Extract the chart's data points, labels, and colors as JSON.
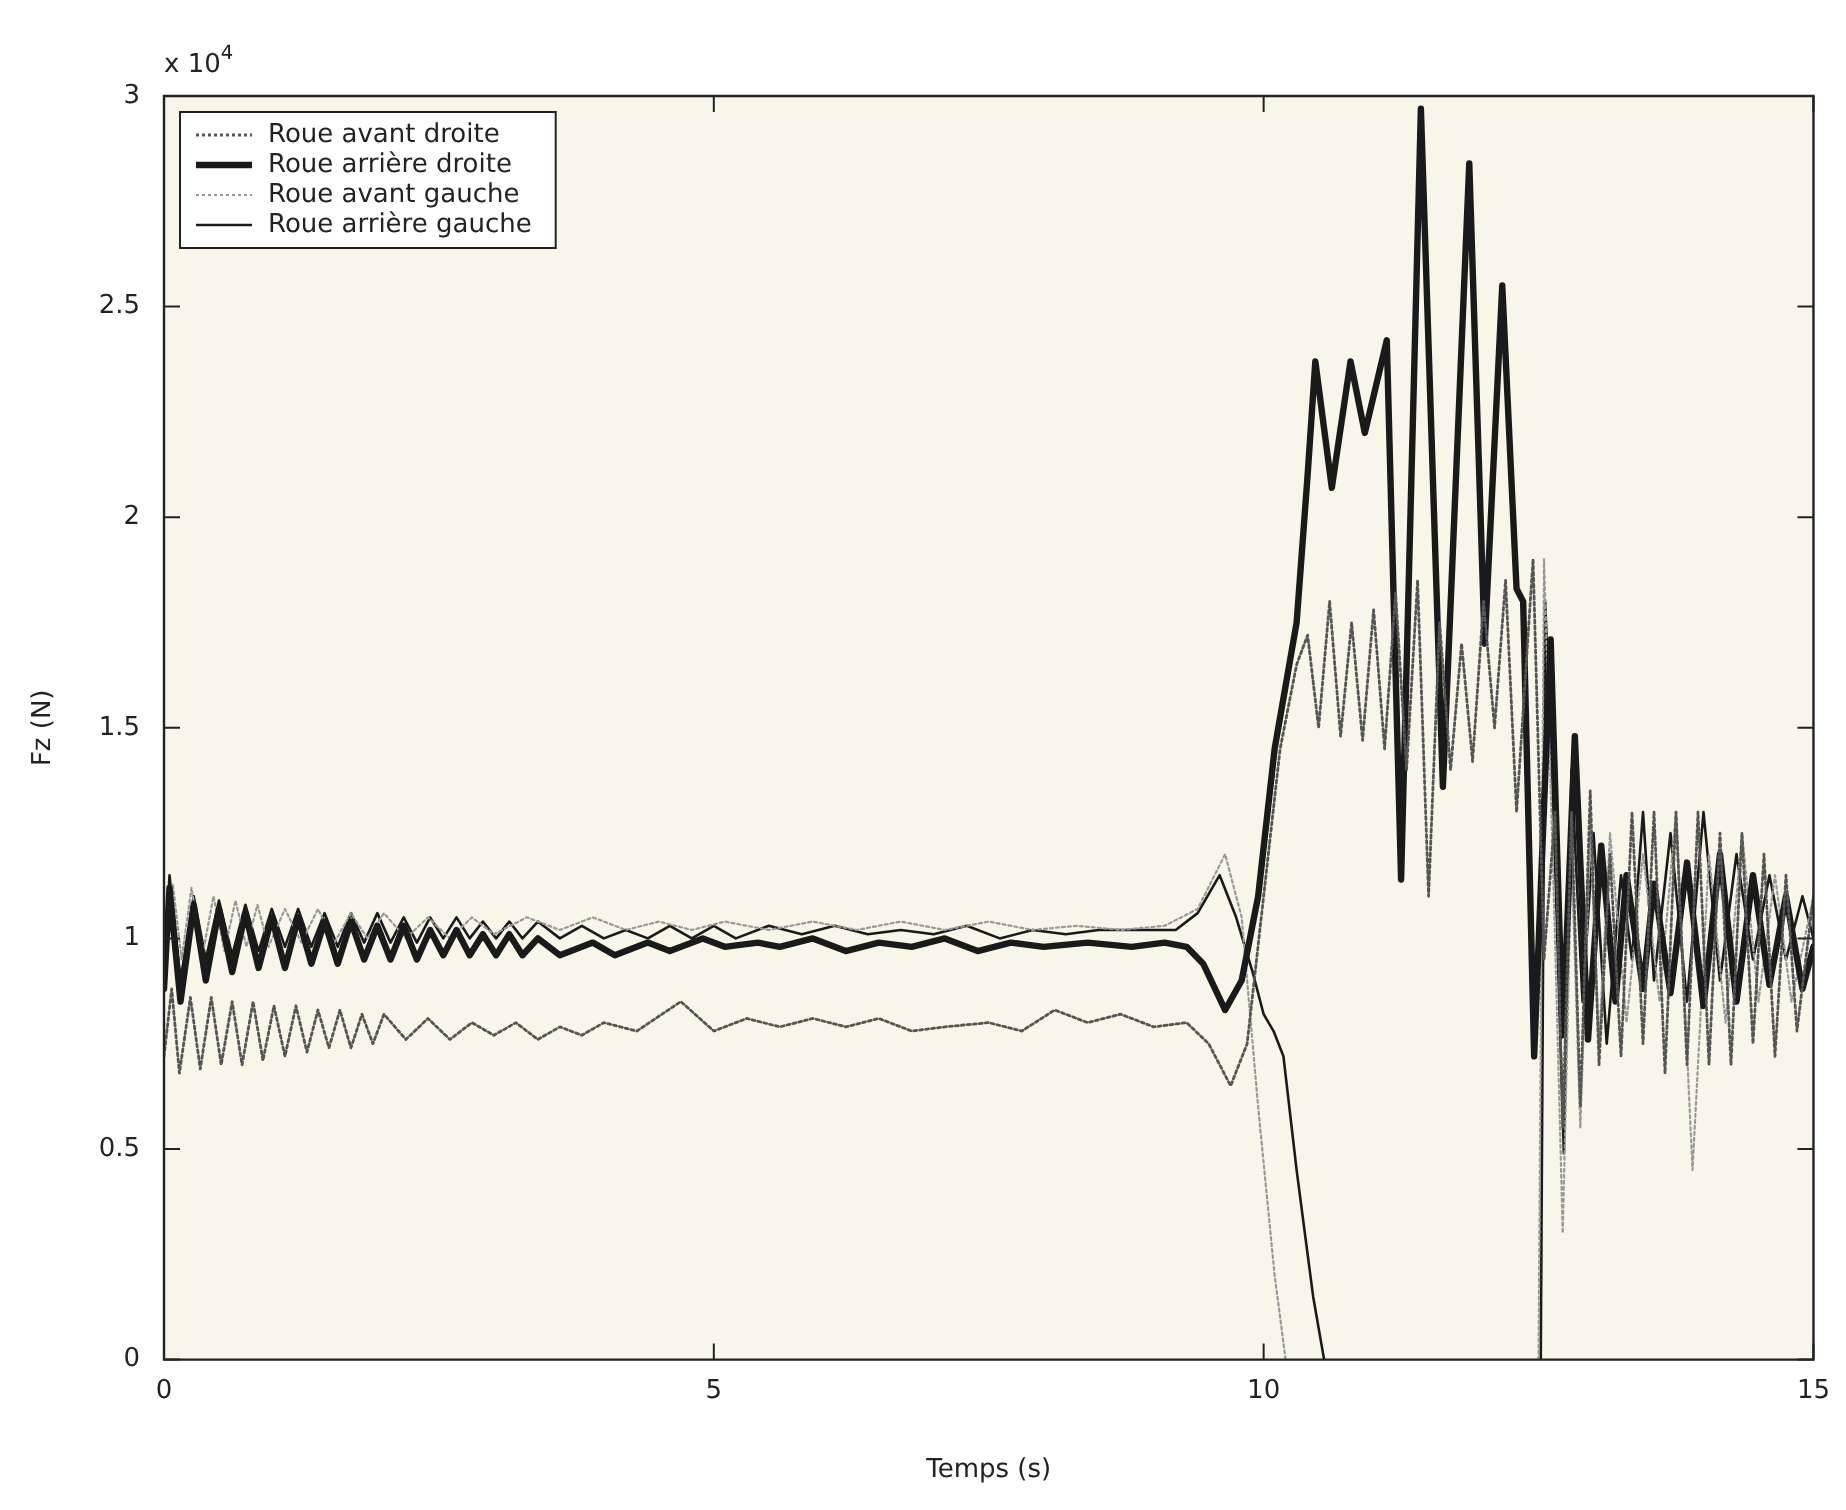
{
  "chart_data": {
    "type": "line",
    "xlabel": "Temps (s)",
    "ylabel": "Fz (N)",
    "annotations": [
      "x 10$^{4}$"
    ],
    "xlim": [
      0,
      15
    ],
    "xticks": [
      0,
      5,
      10,
      15
    ],
    "ylim": [
      0,
      3
    ],
    "yticks": [
      0,
      0.5,
      1,
      1.5,
      2,
      2.5,
      3
    ],
    "grid": false,
    "legend": "top left",
    "marker": "none",
    "series": [
      {
        "name": "Roue avant droite",
        "color": "#555555",
        "line_style": "dotted",
        "x": [
          0,
          0.07,
          0.14,
          0.24,
          0.33,
          0.43,
          0.52,
          0.62,
          0.71,
          0.81,
          0.9,
          1.0,
          1.1,
          1.2,
          1.3,
          1.4,
          1.5,
          1.6,
          1.7,
          1.8,
          1.9,
          2.0,
          2.2,
          2.4,
          2.6,
          2.8,
          3.0,
          3.2,
          3.4,
          3.6,
          3.8,
          4.0,
          4.3,
          4.7,
          5.0,
          5.3,
          5.6,
          5.9,
          6.2,
          6.5,
          6.8,
          7.1,
          7.5,
          7.8,
          8.1,
          8.4,
          8.7,
          9.0,
          9.3,
          9.5,
          9.7,
          9.85,
          10.0,
          10.15,
          10.3,
          10.4,
          10.5,
          10.6,
          10.7,
          10.8,
          10.9,
          11.0,
          11.1,
          11.2,
          11.3,
          11.4,
          11.5,
          11.6,
          11.7,
          11.8,
          11.9,
          12.0,
          12.1,
          12.2,
          12.3,
          12.45,
          12.55,
          12.65,
          12.72,
          12.8,
          12.88,
          12.97,
          13.05,
          13.15,
          13.25,
          13.35,
          13.45,
          13.55,
          13.65,
          13.75,
          13.85,
          13.95,
          14.05,
          14.15,
          14.25,
          14.35,
          14.45,
          14.55,
          14.65,
          14.75,
          14.85,
          15.0
        ],
        "values": [
          0.72,
          0.88,
          0.68,
          0.86,
          0.69,
          0.86,
          0.7,
          0.85,
          0.7,
          0.85,
          0.71,
          0.84,
          0.72,
          0.84,
          0.73,
          0.83,
          0.74,
          0.83,
          0.74,
          0.82,
          0.75,
          0.82,
          0.76,
          0.81,
          0.76,
          0.8,
          0.77,
          0.8,
          0.76,
          0.79,
          0.77,
          0.8,
          0.78,
          0.85,
          0.78,
          0.81,
          0.79,
          0.81,
          0.79,
          0.81,
          0.78,
          0.79,
          0.8,
          0.78,
          0.83,
          0.8,
          0.82,
          0.79,
          0.8,
          0.75,
          0.65,
          0.75,
          1.1,
          1.45,
          1.65,
          1.72,
          1.5,
          1.8,
          1.48,
          1.75,
          1.47,
          1.78,
          1.45,
          1.82,
          1.4,
          1.85,
          1.1,
          1.75,
          1.4,
          1.7,
          1.42,
          1.8,
          1.5,
          1.85,
          1.3,
          1.9,
          0.95,
          1.3,
          0.55,
          1.3,
          0.6,
          1.35,
          0.7,
          1.2,
          0.72,
          1.3,
          0.75,
          1.3,
          0.68,
          1.3,
          0.7,
          1.3,
          0.7,
          1.25,
          0.7,
          1.25,
          0.75,
          1.2,
          0.72,
          1.15,
          0.78,
          1.1
        ]
      },
      {
        "name": "Roue arrière droite",
        "color": "#1a1a1a",
        "line_style": "solid",
        "x": [
          0,
          0.05,
          0.15,
          0.27,
          0.38,
          0.5,
          0.62,
          0.74,
          0.86,
          0.98,
          1.1,
          1.22,
          1.34,
          1.46,
          1.58,
          1.7,
          1.82,
          1.94,
          2.06,
          2.18,
          2.3,
          2.42,
          2.54,
          2.66,
          2.78,
          2.9,
          3.02,
          3.14,
          3.26,
          3.4,
          3.6,
          3.9,
          4.1,
          4.4,
          4.6,
          4.9,
          5.1,
          5.4,
          5.6,
          5.9,
          6.2,
          6.5,
          6.8,
          7.1,
          7.4,
          7.7,
          8.0,
          8.4,
          8.8,
          9.1,
          9.3,
          9.45,
          9.65,
          9.8,
          9.95,
          10.1,
          10.3,
          10.4,
          10.47,
          10.62,
          10.79,
          10.92,
          11.12,
          11.25,
          11.43,
          11.63,
          11.87,
          12.01,
          12.17,
          12.3,
          12.36,
          12.46,
          12.61,
          12.72,
          12.83,
          12.95,
          13.07,
          13.2,
          13.3,
          13.45,
          13.55,
          13.7,
          13.85,
          14.0,
          14.15,
          14.3,
          14.45,
          14.6,
          14.75,
          14.9,
          15
        ],
        "values": [
          0.88,
          1.12,
          0.85,
          1.08,
          0.9,
          1.07,
          0.92,
          1.06,
          0.93,
          1.05,
          0.93,
          1.05,
          0.94,
          1.04,
          0.94,
          1.04,
          0.95,
          1.03,
          0.95,
          1.03,
          0.95,
          1.02,
          0.96,
          1.02,
          0.96,
          1.01,
          0.96,
          1.01,
          0.96,
          1.0,
          0.96,
          0.99,
          0.96,
          0.99,
          0.97,
          1.0,
          0.98,
          0.99,
          0.98,
          1.0,
          0.97,
          0.99,
          0.98,
          1.0,
          0.97,
          0.99,
          0.98,
          0.99,
          0.98,
          0.99,
          0.98,
          0.94,
          0.83,
          0.9,
          1.1,
          1.45,
          1.75,
          2.1,
          2.37,
          2.07,
          2.37,
          2.2,
          2.42,
          1.14,
          2.97,
          1.36,
          2.84,
          1.7,
          2.55,
          1.83,
          1.8,
          0.72,
          1.71,
          0.77,
          1.48,
          0.76,
          1.22,
          0.85,
          1.15,
          0.88,
          1.13,
          0.87,
          1.18,
          0.84,
          1.2,
          0.85,
          1.15,
          0.89,
          1.1,
          0.88,
          0.98
        ]
      },
      {
        "name": "Roue avant gauche",
        "color": "#999999",
        "line_style": "dotted",
        "x": [
          0,
          0.08,
          0.16,
          0.25,
          0.35,
          0.45,
          0.55,
          0.65,
          0.75,
          0.85,
          0.95,
          1.1,
          1.25,
          1.4,
          1.55,
          1.7,
          1.85,
          2.0,
          2.2,
          2.4,
          2.6,
          2.8,
          3.0,
          3.3,
          3.6,
          3.9,
          4.2,
          4.5,
          4.8,
          5.1,
          5.5,
          5.9,
          6.3,
          6.7,
          7.1,
          7.5,
          7.9,
          8.3,
          8.7,
          9.1,
          9.4,
          9.65,
          9.8,
          9.95,
          10.1,
          10.2,
          11.0,
          12.5,
          12.55,
          12.65,
          12.72,
          12.8,
          12.88,
          12.97,
          13.05,
          13.15,
          13.3,
          13.45,
          13.6,
          13.75,
          13.9,
          14.05,
          14.2,
          14.35,
          14.5,
          14.65,
          14.8,
          15
        ],
        "values": [
          0.95,
          1.13,
          0.95,
          1.12,
          0.96,
          1.1,
          0.97,
          1.09,
          0.98,
          1.08,
          0.98,
          1.07,
          0.99,
          1.07,
          0.99,
          1.06,
          1.0,
          1.06,
          1.0,
          1.05,
          1.0,
          1.05,
          1.01,
          1.05,
          1.02,
          1.05,
          1.02,
          1.04,
          1.02,
          1.04,
          1.02,
          1.04,
          1.02,
          1.04,
          1.02,
          1.04,
          1.02,
          1.03,
          1.02,
          1.03,
          1.07,
          1.2,
          1.05,
          0.6,
          0.2,
          0,
          null,
          0,
          1.9,
          1.0,
          0.3,
          1.2,
          0.55,
          1.25,
          0.75,
          1.25,
          0.8,
          1.2,
          0.85,
          1.3,
          0.45,
          1.2,
          0.8,
          1.25,
          0.85,
          1.15,
          0.85,
          1.1
        ]
      },
      {
        "name": "Roue arrière gauche",
        "color": "#1a1a1a",
        "line_style": "solid",
        "x": [
          0,
          0.05,
          0.15,
          0.27,
          0.38,
          0.5,
          0.62,
          0.74,
          0.86,
          0.98,
          1.1,
          1.22,
          1.34,
          1.46,
          1.58,
          1.7,
          1.82,
          1.94,
          2.06,
          2.18,
          2.3,
          2.42,
          2.54,
          2.66,
          2.78,
          2.9,
          3.02,
          3.14,
          3.26,
          3.4,
          3.6,
          3.8,
          4.0,
          4.2,
          4.4,
          4.6,
          4.8,
          5.0,
          5.2,
          5.5,
          5.8,
          6.1,
          6.4,
          6.7,
          7.0,
          7.3,
          7.6,
          7.9,
          8.2,
          8.5,
          8.8,
          9.2,
          9.4,
          9.6,
          9.75,
          9.9,
          10.0,
          10.09,
          10.18,
          10.3,
          10.45,
          10.55,
          11.5,
          12.52,
          12.56,
          12.63,
          12.73,
          12.8,
          12.9,
          13.0,
          13.12,
          13.25,
          13.35,
          13.45,
          13.55,
          13.7,
          13.85,
          14.0,
          14.15,
          14.3,
          14.45,
          14.6,
          14.75,
          14.9,
          15
        ],
        "values": [
          0.9,
          1.15,
          0.9,
          1.1,
          0.95,
          1.09,
          0.96,
          1.08,
          0.97,
          1.07,
          0.98,
          1.07,
          0.98,
          1.06,
          0.98,
          1.06,
          0.99,
          1.06,
          0.99,
          1.05,
          0.99,
          1.05,
          1.0,
          1.05,
          1.0,
          1.04,
          1.0,
          1.04,
          1.0,
          1.04,
          1.0,
          1.03,
          1.0,
          1.02,
          1.0,
          1.03,
          1.0,
          1.03,
          1.0,
          1.03,
          1.01,
          1.03,
          1.01,
          1.02,
          1.01,
          1.03,
          1.0,
          1.02,
          1.01,
          1.02,
          1.02,
          1.02,
          1.06,
          1.15,
          1.05,
          0.92,
          0.82,
          0.78,
          0.72,
          0.45,
          0.15,
          0,
          null,
          0,
          1.8,
          1.35,
          0.49,
          1.4,
          0.85,
          1.25,
          0.75,
          1.15,
          0.95,
          1.3,
          0.9,
          1.25,
          0.85,
          1.3,
          0.9,
          1.2,
          0.95,
          1.15,
          0.95,
          1.1,
          1.0
        ]
      }
    ]
  }
}
